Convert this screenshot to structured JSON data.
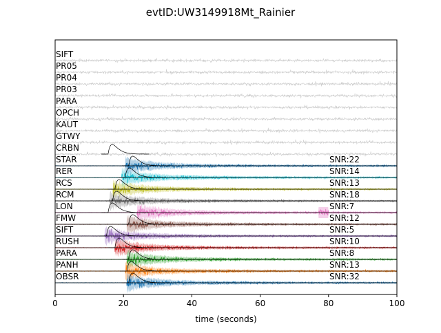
{
  "chart_data": {
    "type": "line",
    "title": "evtID:UW3149918Mt_Rainier",
    "xlabel": "time (seconds)",
    "ylabel": "",
    "xlim": [
      0,
      100
    ],
    "xticks": [
      "0",
      "20",
      "40",
      "60",
      "80",
      "100"
    ],
    "grid": false,
    "legend": "none",
    "noise_color": "#cccccc",
    "traces": [
      {
        "station": "SIFT",
        "snr": "",
        "color": "#cccccc",
        "type": "noise",
        "env_onset": null
      },
      {
        "station": "PR05",
        "snr": "",
        "color": "#cccccc",
        "type": "noise",
        "env_onset": null
      },
      {
        "station": "PR04",
        "snr": "",
        "color": "#cccccc",
        "type": "noise",
        "env_onset": null
      },
      {
        "station": "PR03",
        "snr": "",
        "color": "#cccccc",
        "type": "noise",
        "env_onset": null
      },
      {
        "station": "PARA",
        "snr": "",
        "color": "#cccccc",
        "type": "noise",
        "env_onset": null
      },
      {
        "station": "OPCH",
        "snr": "",
        "color": "#cccccc",
        "type": "noise",
        "env_onset": null
      },
      {
        "station": "KAUT",
        "snr": "",
        "color": "#cccccc",
        "type": "noise",
        "env_onset": null
      },
      {
        "station": "GTWY",
        "snr": "",
        "color": "#cccccc",
        "type": "noise",
        "env_onset": null
      },
      {
        "station": "CRBN",
        "snr": "",
        "color": "#cccccc",
        "type": "noise",
        "env_onset": 15.5
      },
      {
        "station": "STAR",
        "snr": "SNR:22",
        "color": "#1f77b4",
        "type": "signal",
        "onset": 20.5,
        "env_onset": 21.5
      },
      {
        "station": "RER",
        "snr": "SNR:14",
        "color": "#17becf",
        "type": "signal",
        "onset": 19.5,
        "env_onset": 20.5
      },
      {
        "station": "RCS",
        "snr": "SNR:13",
        "color": "#bcbd22",
        "type": "signal",
        "onset": 17.0,
        "env_onset": 17.5
      },
      {
        "station": "RCM",
        "snr": "SNR:18",
        "color": "#7f7f7f",
        "type": "signal",
        "onset": 16.0,
        "env_onset": 16.8
      },
      {
        "station": "LON",
        "snr": "SNR:7",
        "color": "#e377c2",
        "type": "signal",
        "onset": 24.0,
        "env_onset": 15.5,
        "late_burst": 77.0
      },
      {
        "station": "FMW",
        "snr": "SNR:12",
        "color": "#8c564b",
        "type": "signal",
        "onset": 21.0,
        "env_onset": 21.5
      },
      {
        "station": "SIFT",
        "snr": "SNR:5",
        "color": "#9467bd",
        "type": "signal",
        "onset": 14.5,
        "env_onset": 15.0
      },
      {
        "station": "RUSH",
        "snr": "SNR:10",
        "color": "#d62728",
        "type": "signal",
        "onset": 17.5,
        "env_onset": 17.5
      },
      {
        "station": "PARA",
        "snr": "SNR:8",
        "color": "#2ca02c",
        "type": "signal",
        "onset": 21.0,
        "env_onset": 21.5
      },
      {
        "station": "PANH",
        "snr": "SNR:13",
        "color": "#ff7f0e",
        "type": "signal",
        "onset": 20.5,
        "env_onset": 21.0
      },
      {
        "station": "OBSR",
        "snr": "SNR:32",
        "color": "#1f77b4",
        "type": "signal",
        "onset": 21.0,
        "env_onset": 21.5
      }
    ]
  }
}
